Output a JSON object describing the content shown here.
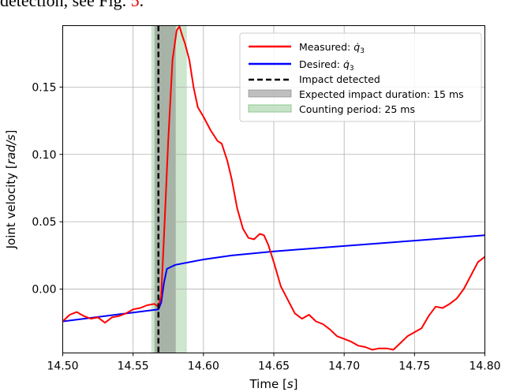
{
  "caption": {
    "text": "detection, see Fig. ",
    "ref": "5",
    "end": "."
  },
  "chart_data": {
    "type": "line",
    "xlabel": "Time [s]",
    "xlabel_main": "Time ",
    "xlabel_unit": "s",
    "ylabel_main": "Joint velocity ",
    "ylabel_unit": "rad/s",
    "xlim": [
      14.5,
      14.8
    ],
    "ylim": [
      -0.0474,
      0.1956
    ],
    "xticks": [
      14.5,
      14.55,
      14.6,
      14.65,
      14.7,
      14.75,
      14.8
    ],
    "xtick_labels": [
      "14.50",
      "14.55",
      "14.60",
      "14.65",
      "14.70",
      "14.75",
      "14.80"
    ],
    "yticks": [
      0.0,
      0.05,
      0.1,
      0.15
    ],
    "ytick_labels": [
      "0.00",
      "0.05",
      "0.10",
      "0.15"
    ],
    "grid": true,
    "legend_position": "top-right",
    "series": [
      {
        "name": "Measured: q̇3",
        "legend_main": "Measured: ",
        "legend_sym": "q̇",
        "legend_sub": "3",
        "color": "#ff0000",
        "x": [
          14.5,
          14.505,
          14.51,
          14.515,
          14.52,
          14.525,
          14.53,
          14.535,
          14.54,
          14.545,
          14.55,
          14.555,
          14.56,
          14.565,
          14.568,
          14.57,
          14.572,
          14.575,
          14.578,
          14.581,
          14.583,
          14.585,
          14.587,
          14.59,
          14.593,
          14.596,
          14.6,
          14.605,
          14.61,
          14.613,
          14.617,
          14.62,
          14.624,
          14.628,
          14.632,
          14.636,
          14.64,
          14.643,
          14.646,
          14.65,
          14.655,
          14.66,
          14.665,
          14.67,
          14.675,
          14.68,
          14.685,
          14.69,
          14.695,
          14.7,
          14.705,
          14.71,
          14.715,
          14.72,
          14.725,
          14.73,
          14.735,
          14.74,
          14.745,
          14.75,
          14.755,
          14.76,
          14.765,
          14.77,
          14.775,
          14.78,
          14.785,
          14.79,
          14.795,
          14.8
        ],
        "y": [
          -0.024,
          -0.019,
          -0.017,
          -0.02,
          -0.022,
          -0.021,
          -0.025,
          -0.021,
          -0.02,
          -0.018,
          -0.015,
          -0.014,
          -0.012,
          -0.011,
          -0.013,
          -0.005,
          0.04,
          0.11,
          0.17,
          0.192,
          0.195,
          0.188,
          0.182,
          0.17,
          0.15,
          0.135,
          0.128,
          0.118,
          0.11,
          0.108,
          0.095,
          0.082,
          0.06,
          0.045,
          0.038,
          0.037,
          0.041,
          0.04,
          0.033,
          0.02,
          0.002,
          -0.008,
          -0.018,
          -0.022,
          -0.019,
          -0.024,
          -0.026,
          -0.03,
          -0.035,
          -0.037,
          -0.039,
          -0.042,
          -0.043,
          -0.045,
          -0.044,
          -0.044,
          -0.045,
          -0.04,
          -0.035,
          -0.032,
          -0.029,
          -0.02,
          -0.013,
          -0.014,
          -0.011,
          -0.007,
          0.0,
          0.01,
          0.02,
          0.024
        ]
      },
      {
        "name": "Desired: q̇3",
        "legend_main": "Desired: ",
        "legend_sym": "q̇",
        "legend_sub": "3",
        "color": "#0000ff",
        "x": [
          14.5,
          14.53,
          14.568,
          14.57,
          14.572,
          14.574,
          14.58,
          14.59,
          14.6,
          14.62,
          14.65,
          14.7,
          14.75,
          14.8
        ],
        "y": [
          -0.024,
          -0.02,
          -0.015,
          -0.01,
          0.005,
          0.015,
          0.018,
          0.02,
          0.022,
          0.025,
          0.028,
          0.032,
          0.036,
          0.04
        ]
      },
      {
        "name": "Impact detected",
        "color": "#000000",
        "style": "dashed",
        "x_value": 14.568
      },
      {
        "name": "Expected impact duration: 15 ms",
        "color": "#808080",
        "type": "span",
        "x_range": [
          14.5652,
          14.5803
        ]
      },
      {
        "name": "Counting period: 25 ms",
        "color": "#90c890",
        "type": "span",
        "x_range": [
          14.5629,
          14.5882
        ]
      }
    ]
  }
}
